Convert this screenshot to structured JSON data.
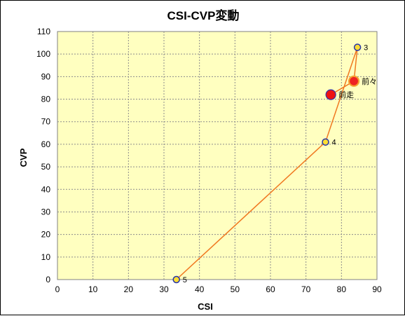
{
  "chart_data": {
    "type": "scatter",
    "title": "CSI-CVP変動",
    "xlabel": "CSI",
    "ylabel": "CVP",
    "xlim": [
      0,
      90
    ],
    "ylim": [
      0,
      110
    ],
    "xticks": [
      0,
      10,
      20,
      30,
      40,
      50,
      60,
      70,
      80,
      90
    ],
    "yticks": [
      0,
      10,
      20,
      30,
      40,
      50,
      60,
      70,
      80,
      90,
      100,
      110
    ],
    "grid": true,
    "plot_background": "#ffffc0",
    "line_color": "#f07820",
    "series": [
      {
        "points": [
          {
            "x": 77,
            "y": 82,
            "label": "前走",
            "marker": "large-red"
          },
          {
            "x": 83.5,
            "y": 88,
            "label": "前々",
            "marker": "large-red-orange"
          },
          {
            "x": 84.5,
            "y": 103,
            "label": "3",
            "marker": "small-yellow"
          },
          {
            "x": 75.5,
            "y": 61,
            "label": "4",
            "marker": "small-yellow"
          },
          {
            "x": 33.5,
            "y": 0,
            "label": "5",
            "marker": "small-yellow"
          }
        ]
      }
    ]
  }
}
